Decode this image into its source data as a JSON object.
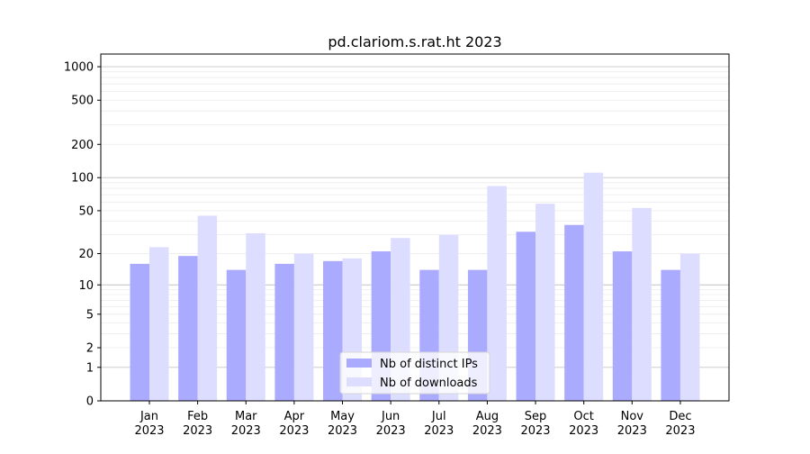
{
  "chart_data": {
    "type": "bar",
    "title": "pd.clariom.s.rat.ht 2023",
    "xlabel": "",
    "ylabel": "",
    "scale": "symlog",
    "ylim": [
      0,
      1300
    ],
    "yticks": [
      {
        "value": 0,
        "label": "0"
      },
      {
        "value": 1,
        "label": "1"
      },
      {
        "value": 2,
        "label": "2"
      },
      {
        "value": 5,
        "label": "5"
      },
      {
        "value": 10,
        "label": "10"
      },
      {
        "value": 20,
        "label": "20"
      },
      {
        "value": 50,
        "label": "50"
      },
      {
        "value": 100,
        "label": "100"
      },
      {
        "value": 200,
        "label": "200"
      },
      {
        "value": 500,
        "label": "500"
      },
      {
        "value": 1000,
        "label": "1000"
      }
    ],
    "categories": [
      "Jan\n2023",
      "Feb\n2023",
      "Mar\n2023",
      "Apr\n2023",
      "May\n2023",
      "Jun\n2023",
      "Jul\n2023",
      "Aug\n2023",
      "Sep\n2023",
      "Oct\n2023",
      "Nov\n2023",
      "Dec\n2023"
    ],
    "series": [
      {
        "name": "Nb of distinct IPs",
        "color": "#aaaaff",
        "values": [
          16,
          19,
          14,
          16,
          17,
          21,
          14,
          14,
          32,
          37,
          21,
          14
        ]
      },
      {
        "name": "Nb of downloads",
        "color": "#ddddff",
        "values": [
          23,
          45,
          31,
          20,
          18,
          28,
          30,
          84,
          58,
          111,
          53,
          20
        ]
      }
    ],
    "grid": true,
    "legend_position": "bottom-center"
  }
}
